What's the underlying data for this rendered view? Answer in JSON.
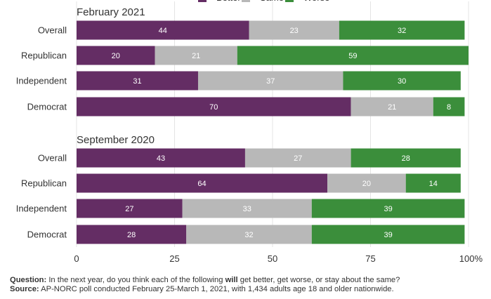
{
  "chart_data": {
    "type": "bar",
    "orientation": "horizontal",
    "stacked": true,
    "legend": {
      "position": "top",
      "entries": [
        {
          "label": "Better",
          "color": "#642d64"
        },
        {
          "label": "Same",
          "color": "#b8b8b8"
        },
        {
          "label": "Worse",
          "color": "#3b8e3b"
        }
      ]
    },
    "xlim": [
      0,
      100
    ],
    "xticks": [
      "0",
      "25",
      "50",
      "75",
      "100%"
    ],
    "grid": true,
    "panels": [
      {
        "title": "February 2021",
        "categories": [
          "Overall",
          "Republican",
          "Independent",
          "Democrat"
        ],
        "series": [
          {
            "name": "Better",
            "values": [
              44,
              20,
              31,
              70
            ]
          },
          {
            "name": "Same",
            "values": [
              23,
              21,
              37,
              21
            ]
          },
          {
            "name": "Worse",
            "values": [
              32,
              59,
              30,
              8
            ]
          }
        ]
      },
      {
        "title": "September 2020",
        "categories": [
          "Overall",
          "Republican",
          "Independent",
          "Democrat"
        ],
        "series": [
          {
            "name": "Better",
            "values": [
              43,
              64,
              27,
              28
            ]
          },
          {
            "name": "Same",
            "values": [
              27,
              20,
              33,
              32
            ]
          },
          {
            "name": "Worse",
            "values": [
              28,
              14,
              39,
              39
            ]
          }
        ]
      }
    ]
  },
  "footer": {
    "question_label": "Question:",
    "question_pre": " In the next year, do you think each of the following ",
    "question_bold": "will",
    "question_post": " get better, get worse, or stay about the same?",
    "source_label": "Source:",
    "source_text": " AP-NORC poll conducted February 25-March 1, 2021, with 1,434 adults age 18 and older nationwide."
  }
}
